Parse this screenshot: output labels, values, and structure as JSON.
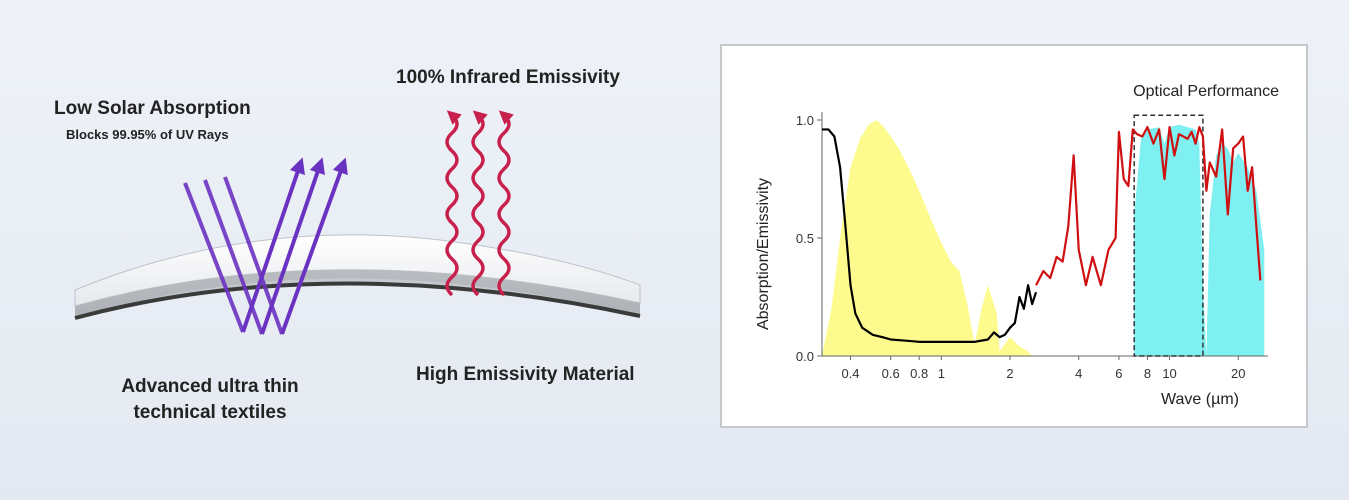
{
  "left_panel": {
    "low_solar_title": "Low Solar Absorption",
    "uv_subtitle": "Blocks 99.95% of UV Rays",
    "infrared_title": "100% Infrared Emissivity",
    "textile_label": "Advanced ultra thin technical textiles",
    "material_label": "High Emissivity Material",
    "colors": {
      "uv_arrow": "#6a32c0",
      "ir_arrow": "#c8204c",
      "fabric_edge": "#3a3a3a"
    }
  },
  "chart_data": {
    "type": "line",
    "title": "Optical Performance",
    "xlabel": "Wave (µm)",
    "ylabel": "Absorption/Emissivity",
    "x_scale": "log",
    "xlim": [
      0.3,
      27
    ],
    "ylim": [
      0,
      1.0
    ],
    "x_ticks": [
      0.4,
      0.6,
      0.8,
      1,
      2,
      4,
      6,
      8,
      10,
      20
    ],
    "x_tick_labels": [
      "0.4",
      "0.6",
      "0.8",
      "1",
      "2",
      "4",
      "6",
      "8",
      "10",
      "20"
    ],
    "y_ticks": [
      0,
      0.5,
      1.0
    ],
    "y_tick_labels": [
      "0.0",
      "0.5",
      "1.0"
    ],
    "series": [
      {
        "name": "absorption",
        "color": "#000000",
        "x": [
          0.3,
          0.32,
          0.34,
          0.36,
          0.38,
          0.4,
          0.42,
          0.45,
          0.5,
          0.55,
          0.6,
          0.7,
          0.8,
          0.9,
          1.0,
          1.2,
          1.4,
          1.6,
          1.7,
          1.8,
          1.9,
          2.0,
          2.1,
          2.2,
          2.3,
          2.4,
          2.5,
          2.6
        ],
        "y": [
          0.96,
          0.96,
          0.93,
          0.8,
          0.55,
          0.3,
          0.18,
          0.12,
          0.09,
          0.08,
          0.07,
          0.065,
          0.06,
          0.06,
          0.06,
          0.06,
          0.06,
          0.07,
          0.1,
          0.08,
          0.09,
          0.12,
          0.14,
          0.25,
          0.2,
          0.3,
          0.22,
          0.27
        ]
      },
      {
        "name": "emissivity",
        "color": "#d01010",
        "x": [
          2.6,
          2.8,
          3.0,
          3.2,
          3.4,
          3.6,
          3.8,
          4.0,
          4.3,
          4.6,
          5.0,
          5.4,
          5.8,
          6.0,
          6.3,
          6.6,
          6.9,
          7.2,
          7.6,
          8.0,
          8.5,
          9.0,
          9.5,
          10.0,
          10.5,
          11.0,
          11.5,
          12.0,
          12.5,
          13.0,
          13.5,
          14.0,
          14.5,
          15.0,
          16.0,
          17.0,
          18.0,
          19.0,
          20.0,
          21.0,
          22.0,
          23.0,
          24.0,
          25.0
        ],
        "y": [
          0.3,
          0.36,
          0.33,
          0.42,
          0.4,
          0.55,
          0.85,
          0.45,
          0.3,
          0.42,
          0.3,
          0.45,
          0.5,
          0.95,
          0.75,
          0.72,
          0.96,
          0.94,
          0.93,
          0.97,
          0.9,
          0.96,
          0.75,
          0.97,
          0.85,
          0.94,
          0.93,
          0.92,
          0.95,
          0.9,
          0.97,
          0.93,
          0.7,
          0.82,
          0.76,
          0.96,
          0.6,
          0.88,
          0.9,
          0.93,
          0.7,
          0.8,
          0.55,
          0.32
        ]
      }
    ],
    "shaded_regions": [
      {
        "name": "solar-spectrum",
        "color": "#fdfb8e",
        "x": [
          0.3,
          0.33,
          0.36,
          0.4,
          0.44,
          0.48,
          0.52,
          0.56,
          0.6,
          0.65,
          0.7,
          0.75,
          0.8,
          0.9,
          1.0,
          1.1,
          1.2,
          1.3,
          1.4,
          1.5,
          1.6,
          1.75,
          1.8,
          2.0,
          2.2,
          2.4,
          2.5
        ],
        "y": [
          0.0,
          0.2,
          0.5,
          0.8,
          0.92,
          0.98,
          1.0,
          0.97,
          0.93,
          0.88,
          0.82,
          0.76,
          0.7,
          0.58,
          0.48,
          0.4,
          0.36,
          0.22,
          0.05,
          0.2,
          0.3,
          0.18,
          0.02,
          0.08,
          0.04,
          0.02,
          0.0
        ]
      },
      {
        "name": "atmospheric-window",
        "color": "#7ef0f2",
        "x": [
          7.0,
          7.5,
          8.0,
          9.0,
          9.5,
          10.0,
          11.0,
          12.0,
          13.0,
          13.5,
          14.0,
          14.5,
          15.0,
          16.0,
          17.0,
          18.0,
          19.0,
          20.0,
          22.0,
          24.0,
          26.0
        ],
        "y": [
          0.6,
          0.92,
          0.96,
          0.97,
          0.9,
          0.97,
          0.98,
          0.97,
          0.96,
          0.9,
          0.3,
          0.0,
          0.6,
          0.85,
          0.9,
          0.88,
          0.82,
          0.86,
          0.8,
          0.7,
          0.45
        ]
      }
    ],
    "highlight_box": {
      "x_range": [
        7.0,
        14.0
      ],
      "y_range": [
        0.0,
        1.02
      ],
      "style": "dashed"
    }
  }
}
